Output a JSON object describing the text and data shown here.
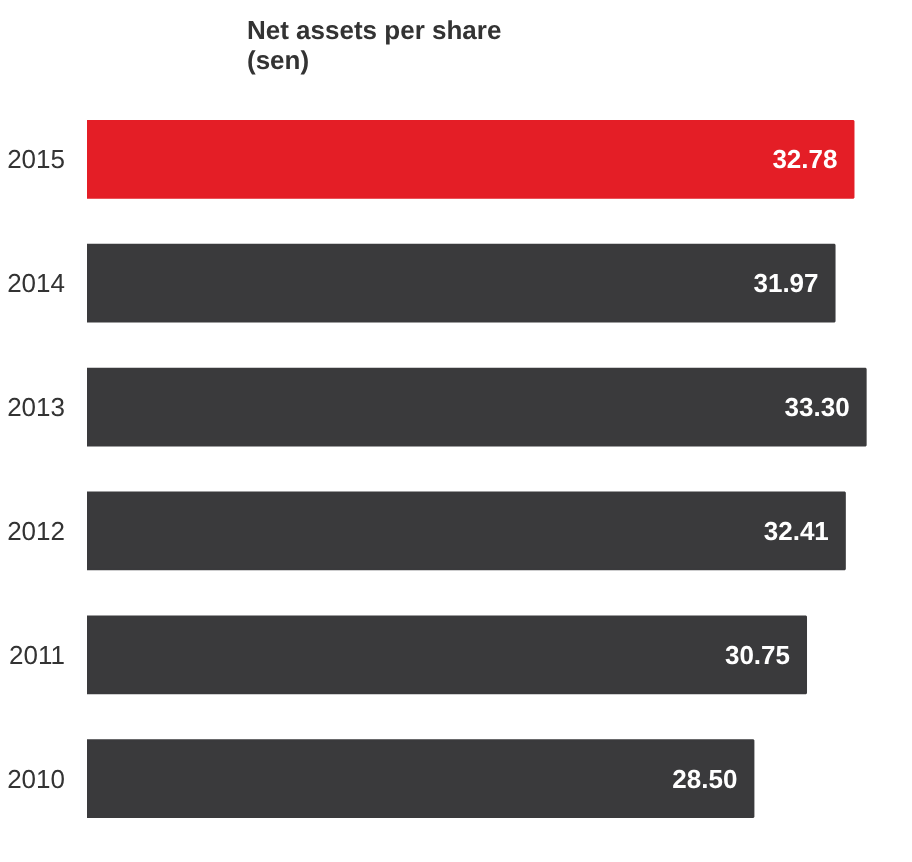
{
  "chart_data": {
    "type": "bar",
    "orientation": "horizontal",
    "title": "Net assets per share\n(sen)",
    "categories": [
      "2015",
      "2014",
      "2013",
      "2012",
      "2011",
      "2010"
    ],
    "values": [
      32.78,
      31.97,
      33.3,
      32.41,
      30.75,
      28.5
    ],
    "value_labels": [
      "32.78",
      "31.97",
      "33.30",
      "32.41",
      "30.75",
      "28.50"
    ],
    "colors": [
      "#e41e26",
      "#3a3a3c",
      "#3a3a3c",
      "#3a3a3c",
      "#3a3a3c",
      "#3a3a3c"
    ],
    "grid": false
  }
}
